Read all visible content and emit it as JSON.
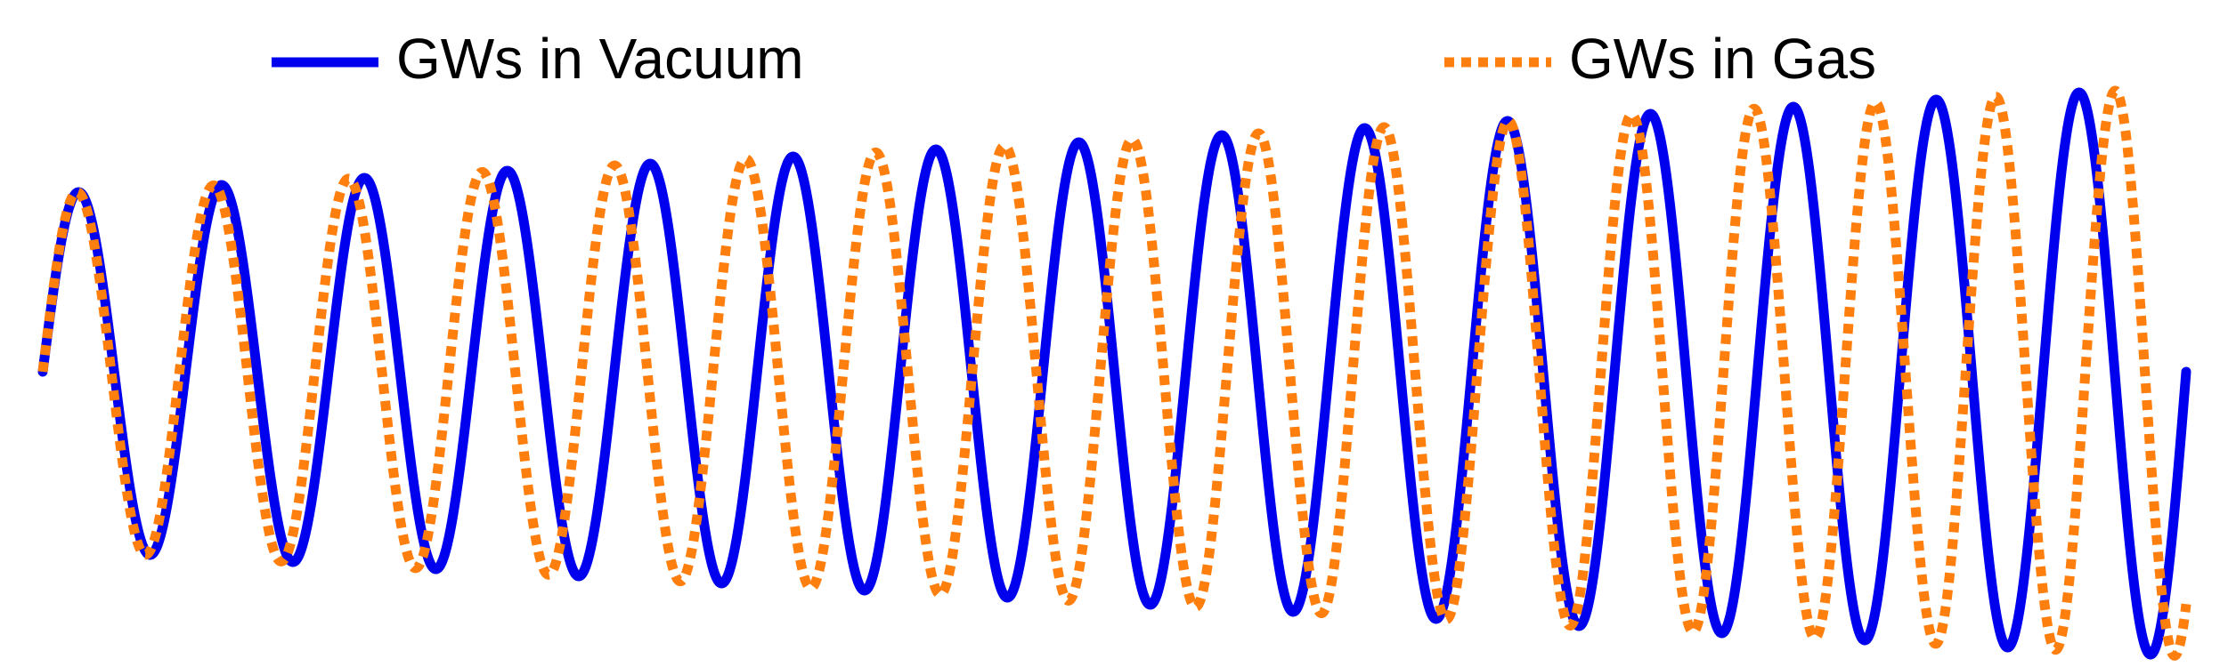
{
  "chart_data": {
    "type": "line",
    "title": "",
    "xlabel": "",
    "ylabel": "",
    "grid": false,
    "axes_visible": false,
    "legend_placement": "top",
    "x_range": [
      0,
      15
    ],
    "y_range": [
      -1.3,
      1.3
    ],
    "series": [
      {
        "name": "GWs in Vacuum",
        "color": "#0000ee",
        "line_style": "solid",
        "function": "chirp",
        "amplitude_start": 1.0,
        "amplitude_end": 1.6,
        "cycles": 15,
        "frequency_growth": 0.0
      },
      {
        "name": "GWs in Gas",
        "color": "#ff7f0e",
        "line_style": "dotted",
        "function": "chirp",
        "amplitude_start": 1.0,
        "amplitude_end": 1.6,
        "cycles": 15.6,
        "frequency_growth": 0.08
      }
    ]
  }
}
